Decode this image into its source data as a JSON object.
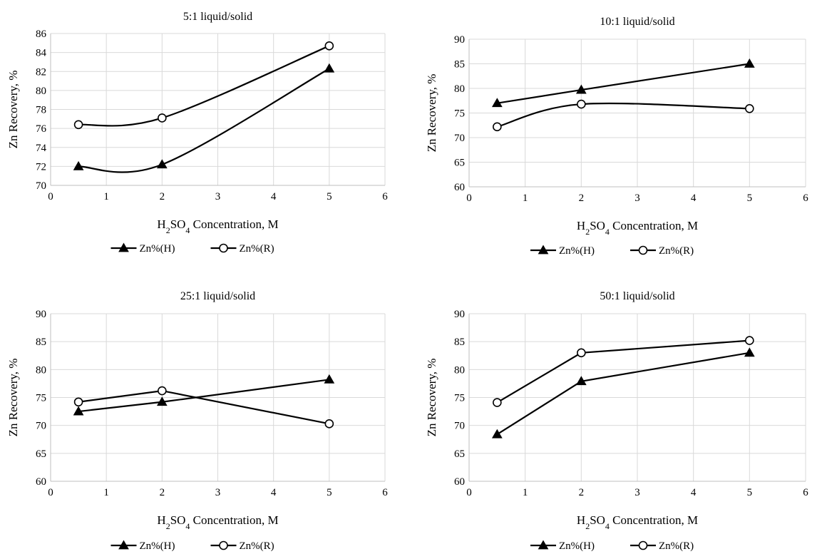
{
  "chart_data": [
    {
      "type": "line",
      "title": "5:1 liquid/solid",
      "xlabel_prefix": "H",
      "xlabel_sub1": "2",
      "xlabel_mid": "SO",
      "xlabel_sub2": "4",
      "xlabel_suffix": " Concentration, M",
      "ylabel": "Zn Recovery, %",
      "xlim": [
        0,
        6
      ],
      "ylim": [
        70,
        86
      ],
      "xticks": [
        0,
        1,
        2,
        3,
        4,
        5,
        6
      ],
      "yticks": [
        70,
        72,
        74,
        76,
        78,
        80,
        82,
        84,
        86
      ],
      "grid": true,
      "legend_position": "bottom",
      "smooth": true,
      "series": [
        {
          "name": "Zn%(H)",
          "marker": "triangle",
          "x": [
            0.5,
            2,
            5
          ],
          "y": [
            72.0,
            72.2,
            82.3
          ]
        },
        {
          "name": "Zn%(R)",
          "marker": "circle",
          "x": [
            0.5,
            2,
            5
          ],
          "y": [
            76.4,
            77.1,
            84.7
          ]
        }
      ]
    },
    {
      "type": "line",
      "title": "10:1 liquid/solid",
      "xlabel_prefix": "H",
      "xlabel_sub1": "2",
      "xlabel_mid": "SO",
      "xlabel_sub2": "4",
      "xlabel_suffix": " Concentration, M",
      "ylabel": "Zn Recovery, %",
      "xlim": [
        0,
        6
      ],
      "ylim": [
        60,
        90
      ],
      "xticks": [
        0,
        1,
        2,
        3,
        4,
        5,
        6
      ],
      "yticks": [
        60,
        65,
        70,
        75,
        80,
        85,
        90
      ],
      "grid": true,
      "legend_position": "bottom",
      "smooth": true,
      "series": [
        {
          "name": "Zn%(H)",
          "marker": "triangle",
          "x": [
            0.5,
            2,
            5
          ],
          "y": [
            77.0,
            79.7,
            85.0
          ]
        },
        {
          "name": "Zn%(R)",
          "marker": "circle",
          "x": [
            0.5,
            2,
            5
          ],
          "y": [
            72.2,
            76.8,
            75.9
          ]
        }
      ]
    },
    {
      "type": "line",
      "title": "25:1 liquid/solid",
      "xlabel_prefix": "H",
      "xlabel_sub1": "2",
      "xlabel_mid": "SO",
      "xlabel_sub2": "4",
      "xlabel_suffix": " Concentration, M",
      "ylabel": "Zn Recovery, %",
      "xlim": [
        0,
        6
      ],
      "ylim": [
        60,
        90
      ],
      "xticks": [
        0,
        1,
        2,
        3,
        4,
        5,
        6
      ],
      "yticks": [
        60,
        65,
        70,
        75,
        80,
        85,
        90
      ],
      "grid": true,
      "legend_position": "bottom",
      "smooth": false,
      "series": [
        {
          "name": "Zn%(H)",
          "marker": "triangle",
          "x": [
            0.5,
            2,
            5
          ],
          "y": [
            72.5,
            74.2,
            78.2
          ]
        },
        {
          "name": "Zn%(R)",
          "marker": "circle",
          "x": [
            0.5,
            2,
            5
          ],
          "y": [
            74.2,
            76.2,
            70.3
          ]
        }
      ]
    },
    {
      "type": "line",
      "title": "50:1 liquid/solid",
      "xlabel_prefix": "H",
      "xlabel_sub1": "2",
      "xlabel_mid": "SO",
      "xlabel_sub2": "4",
      "xlabel_suffix": " Concentration, M",
      "ylabel": "Zn Recovery, %",
      "xlim": [
        0,
        6
      ],
      "ylim": [
        60,
        90
      ],
      "xticks": [
        0,
        1,
        2,
        3,
        4,
        5,
        6
      ],
      "yticks": [
        60,
        65,
        70,
        75,
        80,
        85,
        90
      ],
      "grid": true,
      "legend_position": "bottom",
      "smooth": false,
      "series": [
        {
          "name": "Zn%(H)",
          "marker": "triangle",
          "x": [
            0.5,
            2,
            5
          ],
          "y": [
            68.4,
            77.9,
            83.0
          ]
        },
        {
          "name": "Zn%(R)",
          "marker": "circle",
          "x": [
            0.5,
            2,
            5
          ],
          "y": [
            74.1,
            83.0,
            85.2
          ]
        }
      ]
    }
  ],
  "colors": {
    "line": "#000000",
    "grid": "#d9d9d9",
    "marker_fill_circle": "#ffffff"
  }
}
